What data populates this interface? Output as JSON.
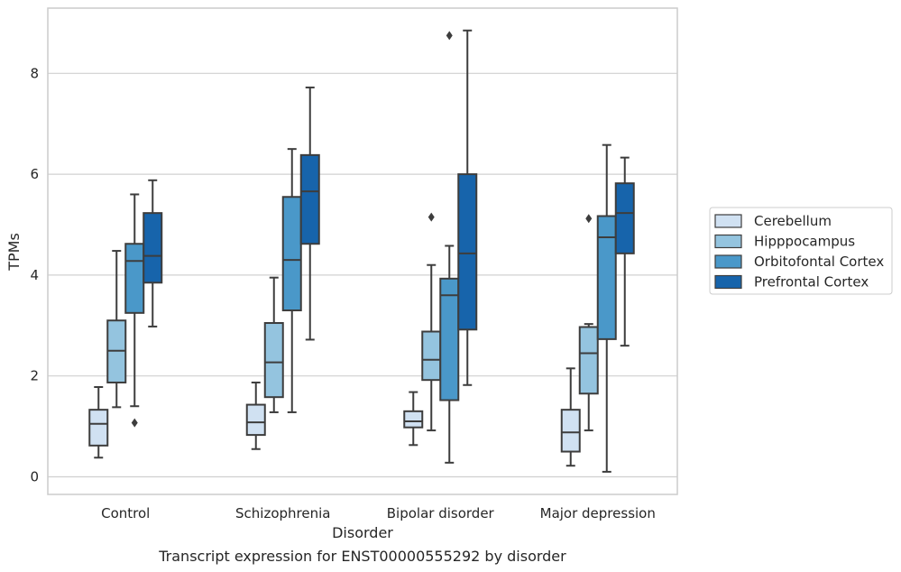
{
  "chart_data": {
    "type": "boxplot",
    "title": "Transcript expression for ENST00000555292 by disorder",
    "xlabel": "Disorder",
    "ylabel": "TPMs",
    "ylim": [
      -0.35,
      9.3
    ],
    "yticks": [
      0,
      2,
      4,
      6,
      8
    ],
    "grid": true,
    "legend_position": "right",
    "categories": [
      "Control",
      "Schizophrenia",
      "Bipolar disorder",
      "Major depression"
    ],
    "series": [
      {
        "name": "Cerebellum",
        "color": "#d0e1f2",
        "boxes": [
          {
            "whislo": 0.38,
            "q1": 0.62,
            "med": 1.05,
            "q3": 1.33,
            "whishi": 1.78,
            "fliers": []
          },
          {
            "whislo": 0.55,
            "q1": 0.83,
            "med": 1.08,
            "q3": 1.43,
            "whishi": 1.87,
            "fliers": []
          },
          {
            "whislo": 0.63,
            "q1": 0.98,
            "med": 1.1,
            "q3": 1.3,
            "whishi": 1.68,
            "fliers": []
          },
          {
            "whislo": 0.22,
            "q1": 0.5,
            "med": 0.88,
            "q3": 1.33,
            "whishi": 2.15,
            "fliers": []
          }
        ]
      },
      {
        "name": "Hipppocampus",
        "color": "#94c4df",
        "boxes": [
          {
            "whislo": 1.38,
            "q1": 1.87,
            "med": 2.5,
            "q3": 3.1,
            "whishi": 4.48,
            "fliers": []
          },
          {
            "whislo": 1.28,
            "q1": 1.58,
            "med": 2.27,
            "q3": 3.05,
            "whishi": 3.95,
            "fliers": []
          },
          {
            "whislo": 0.92,
            "q1": 1.92,
            "med": 2.32,
            "q3": 2.88,
            "whishi": 4.2,
            "fliers": [
              5.15
            ]
          },
          {
            "whislo": 0.92,
            "q1": 1.65,
            "med": 2.45,
            "q3": 2.97,
            "whishi": 3.03,
            "fliers": [
              5.12
            ]
          }
        ]
      },
      {
        "name": "Orbitofontal Cortex",
        "color": "#4a98c9",
        "boxes": [
          {
            "whislo": 1.4,
            "q1": 3.25,
            "med": 4.28,
            "q3": 4.62,
            "whishi": 5.6,
            "fliers": [
              1.07
            ]
          },
          {
            "whislo": 1.28,
            "q1": 3.3,
            "med": 4.3,
            "q3": 5.55,
            "whishi": 6.5,
            "fliers": []
          },
          {
            "whislo": 0.28,
            "q1": 1.52,
            "med": 3.6,
            "q3": 3.93,
            "whishi": 4.58,
            "fliers": [
              8.75
            ]
          },
          {
            "whislo": 0.1,
            "q1": 2.73,
            "med": 4.75,
            "q3": 5.17,
            "whishi": 6.58,
            "fliers": []
          }
        ]
      },
      {
        "name": "Prefrontal Cortex",
        "color": "#1764ab",
        "boxes": [
          {
            "whislo": 2.98,
            "q1": 3.85,
            "med": 4.38,
            "q3": 5.23,
            "whishi": 5.88,
            "fliers": []
          },
          {
            "whislo": 2.72,
            "q1": 4.62,
            "med": 5.66,
            "q3": 6.38,
            "whishi": 7.72,
            "fliers": []
          },
          {
            "whislo": 1.82,
            "q1": 2.92,
            "med": 4.43,
            "q3": 6.0,
            "whishi": 8.85,
            "fliers": []
          },
          {
            "whislo": 2.6,
            "q1": 4.43,
            "med": 5.23,
            "q3": 5.82,
            "whishi": 6.33,
            "fliers": []
          }
        ]
      }
    ]
  }
}
